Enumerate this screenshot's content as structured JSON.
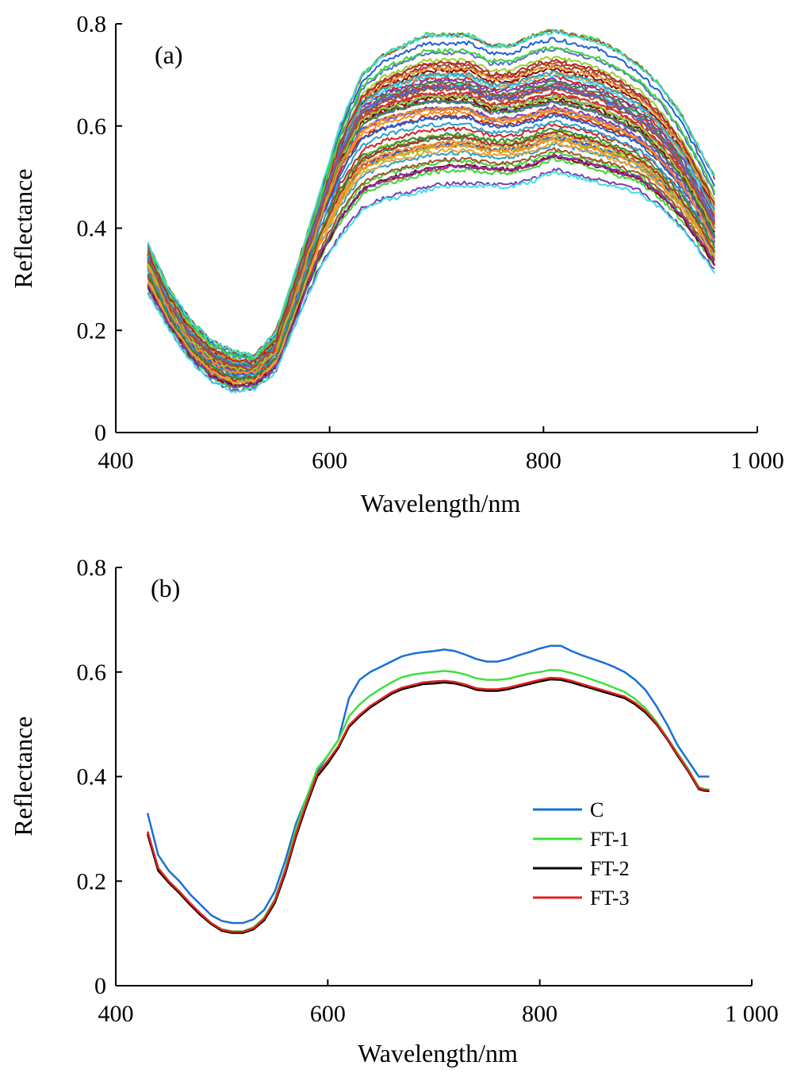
{
  "chart_data": [
    {
      "panel": "(a)",
      "type": "line",
      "xlabel": "Wavelength/nm",
      "ylabel": "Reflectance",
      "xlim": [
        400,
        1000
      ],
      "ylim": [
        0,
        0.8
      ],
      "xticks": [
        400,
        600,
        800,
        1000
      ],
      "xtick_labels": [
        "400",
        "600",
        "800",
        "1 000"
      ],
      "yticks": [
        0,
        0.2,
        0.4,
        0.6,
        0.8
      ],
      "ytick_labels": [
        "0",
        "0.2",
        "0.4",
        "0.6",
        "0.8"
      ],
      "legend": "none",
      "grid": false,
      "wavelengths": [
        430,
        450,
        470,
        490,
        510,
        530,
        550,
        570,
        590,
        610,
        630,
        650,
        670,
        690,
        710,
        730,
        750,
        770,
        790,
        810,
        830,
        850,
        870,
        890,
        910,
        930,
        945,
        960
      ],
      "series_note_shape": "many spectra (approx. 60) sharing a common shape",
      "series_upper": [
        0.37,
        0.28,
        0.22,
        0.18,
        0.16,
        0.15,
        0.2,
        0.33,
        0.46,
        0.6,
        0.7,
        0.74,
        0.76,
        0.78,
        0.78,
        0.78,
        0.76,
        0.76,
        0.78,
        0.79,
        0.78,
        0.77,
        0.75,
        0.72,
        0.68,
        0.62,
        0.56,
        0.5
      ],
      "series_median": [
        0.33,
        0.24,
        0.18,
        0.14,
        0.12,
        0.12,
        0.16,
        0.28,
        0.42,
        0.53,
        0.6,
        0.62,
        0.63,
        0.64,
        0.64,
        0.64,
        0.62,
        0.62,
        0.63,
        0.64,
        0.63,
        0.62,
        0.6,
        0.58,
        0.54,
        0.49,
        0.44,
        0.38
      ],
      "series_lower": [
        0.27,
        0.2,
        0.14,
        0.1,
        0.08,
        0.085,
        0.12,
        0.22,
        0.32,
        0.38,
        0.43,
        0.45,
        0.46,
        0.47,
        0.48,
        0.48,
        0.48,
        0.48,
        0.49,
        0.51,
        0.5,
        0.49,
        0.48,
        0.47,
        0.44,
        0.4,
        0.36,
        0.32
      ],
      "series_colors": [
        "#8b0000",
        "#1f5fd6",
        "#3ad63a",
        "#e6a33a",
        "#d62020",
        "#7a3ab8",
        "#2aa0c8",
        "#40e0e0",
        "#c83a3a",
        "#3a8a3a",
        "#ff8c1a",
        "#b52a2a",
        "#5a6ad6",
        "#9acd32",
        "#a0522d"
      ]
    },
    {
      "panel": "(b)",
      "type": "line",
      "xlabel": "Wavelength/nm",
      "ylabel": "Reflectance",
      "xlim": [
        400,
        1000
      ],
      "ylim": [
        0,
        0.8
      ],
      "xticks": [
        400,
        600,
        800,
        1000
      ],
      "xtick_labels": [
        "400",
        "600",
        "800",
        "1 000"
      ],
      "yticks": [
        0,
        0.2,
        0.4,
        0.6,
        0.8
      ],
      "ytick_labels": [
        "0",
        "0.2",
        "0.4",
        "0.6",
        "0.8"
      ],
      "legend": "right-center",
      "grid": false,
      "x": [
        430,
        440,
        450,
        460,
        470,
        480,
        490,
        500,
        510,
        520,
        530,
        540,
        550,
        560,
        570,
        580,
        590,
        600,
        610,
        620,
        630,
        640,
        650,
        660,
        670,
        680,
        690,
        700,
        710,
        720,
        730,
        740,
        750,
        760,
        770,
        780,
        790,
        800,
        810,
        820,
        830,
        840,
        850,
        860,
        870,
        880,
        890,
        900,
        910,
        920,
        930,
        940,
        950,
        955,
        960
      ],
      "series": [
        {
          "name": "C",
          "color": "#1a6fd6",
          "values": [
            0.33,
            0.25,
            0.22,
            0.2,
            0.175,
            0.155,
            0.135,
            0.124,
            0.12,
            0.12,
            0.127,
            0.145,
            0.18,
            0.24,
            0.31,
            0.36,
            0.41,
            0.44,
            0.47,
            0.55,
            0.585,
            0.6,
            0.61,
            0.62,
            0.63,
            0.635,
            0.638,
            0.64,
            0.643,
            0.64,
            0.633,
            0.625,
            0.62,
            0.62,
            0.625,
            0.632,
            0.638,
            0.645,
            0.65,
            0.65,
            0.64,
            0.632,
            0.625,
            0.618,
            0.61,
            0.6,
            0.585,
            0.565,
            0.535,
            0.5,
            0.46,
            0.43,
            0.4,
            0.4,
            0.4
          ]
        },
        {
          "name": "FT-1",
          "color": "#3ee03e",
          "values": [
            0.295,
            0.225,
            0.2,
            0.18,
            0.158,
            0.138,
            0.12,
            0.108,
            0.104,
            0.104,
            0.112,
            0.13,
            0.165,
            0.225,
            0.3,
            0.36,
            0.415,
            0.44,
            0.47,
            0.515,
            0.538,
            0.555,
            0.568,
            0.58,
            0.59,
            0.595,
            0.598,
            0.6,
            0.602,
            0.6,
            0.595,
            0.588,
            0.585,
            0.585,
            0.587,
            0.592,
            0.597,
            0.6,
            0.604,
            0.603,
            0.598,
            0.592,
            0.585,
            0.578,
            0.57,
            0.562,
            0.548,
            0.53,
            0.505,
            0.475,
            0.445,
            0.415,
            0.38,
            0.376,
            0.375
          ]
        },
        {
          "name": "FT-2",
          "color": "#000000",
          "values": [
            0.29,
            0.22,
            0.197,
            0.177,
            0.155,
            0.135,
            0.118,
            0.105,
            0.101,
            0.101,
            0.108,
            0.125,
            0.158,
            0.215,
            0.285,
            0.345,
            0.4,
            0.425,
            0.455,
            0.495,
            0.515,
            0.532,
            0.545,
            0.558,
            0.567,
            0.572,
            0.577,
            0.578,
            0.58,
            0.578,
            0.573,
            0.566,
            0.564,
            0.564,
            0.567,
            0.572,
            0.577,
            0.582,
            0.586,
            0.585,
            0.58,
            0.574,
            0.568,
            0.562,
            0.556,
            0.55,
            0.538,
            0.522,
            0.5,
            0.472,
            0.44,
            0.41,
            0.376,
            0.373,
            0.372
          ]
        },
        {
          "name": "FT-3",
          "color": "#e62020",
          "values": [
            0.295,
            0.225,
            0.2,
            0.18,
            0.158,
            0.138,
            0.12,
            0.107,
            0.103,
            0.103,
            0.11,
            0.128,
            0.162,
            0.22,
            0.29,
            0.35,
            0.405,
            0.43,
            0.458,
            0.498,
            0.518,
            0.535,
            0.548,
            0.561,
            0.57,
            0.575,
            0.58,
            0.582,
            0.583,
            0.581,
            0.576,
            0.569,
            0.567,
            0.567,
            0.57,
            0.575,
            0.58,
            0.585,
            0.589,
            0.588,
            0.583,
            0.577,
            0.571,
            0.565,
            0.559,
            0.553,
            0.541,
            0.525,
            0.502,
            0.474,
            0.442,
            0.412,
            0.378,
            0.375,
            0.374
          ]
        }
      ]
    }
  ]
}
